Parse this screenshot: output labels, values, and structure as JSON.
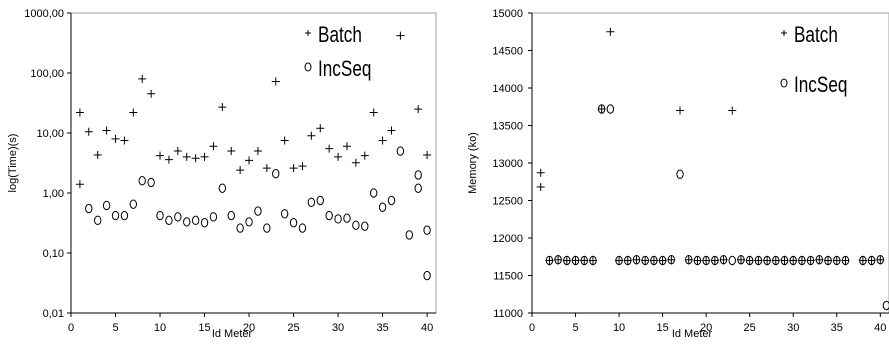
{
  "chart_data": [
    {
      "type": "scatter",
      "title": "",
      "xlabel": "Id Meter",
      "ylabel": "log(Time)(s)",
      "xlim": [
        0,
        41
      ],
      "ylim": [
        0.01,
        1000
      ],
      "yscale": "log",
      "x_ticks": [
        0,
        5,
        10,
        15,
        20,
        25,
        30,
        35,
        40
      ],
      "y_ticks": [
        0.01,
        0.1,
        1,
        10,
        100,
        1000
      ],
      "y_tick_labels": [
        "0,01",
        "0,10",
        "1,00",
        "10,00",
        "100,00",
        "1000,00"
      ],
      "grid": false,
      "legend_position": "top-right",
      "series": [
        {
          "name": "Batch",
          "marker": "plus",
          "points": [
            [
              1,
              22
            ],
            [
              1,
              1.4
            ],
            [
              2,
              10.5
            ],
            [
              3,
              4.3
            ],
            [
              4,
              11
            ],
            [
              5,
              8
            ],
            [
              6,
              7.5
            ],
            [
              7,
              22
            ],
            [
              8,
              80
            ],
            [
              9,
              45
            ],
            [
              10,
              4.2
            ],
            [
              11,
              3.6
            ],
            [
              12,
              5
            ],
            [
              13,
              4
            ],
            [
              14,
              3.8
            ],
            [
              15,
              4
            ],
            [
              16,
              6
            ],
            [
              17,
              27
            ],
            [
              18,
              5
            ],
            [
              19,
              2.4
            ],
            [
              20,
              3.5
            ],
            [
              21,
              5
            ],
            [
              22,
              2.6
            ],
            [
              23,
              72
            ],
            [
              24,
              7.5
            ],
            [
              25,
              2.6
            ],
            [
              26,
              2.8
            ],
            [
              27,
              9
            ],
            [
              28,
              12
            ],
            [
              29,
              5.5
            ],
            [
              30,
              4
            ],
            [
              31,
              6
            ],
            [
              32,
              3.2
            ],
            [
              33,
              4.2
            ],
            [
              34,
              22
            ],
            [
              35,
              7.5
            ],
            [
              36,
              11
            ],
            [
              37,
              420
            ],
            [
              39,
              25
            ],
            [
              40,
              4.3
            ]
          ]
        },
        {
          "name": "IncSeq",
          "marker": "circle",
          "points": [
            [
              2,
              0.55
            ],
            [
              3,
              0.35
            ],
            [
              4,
              0.62
            ],
            [
              5,
              0.42
            ],
            [
              6,
              0.42
            ],
            [
              7,
              0.65
            ],
            [
              8,
              1.6
            ],
            [
              9,
              1.5
            ],
            [
              10,
              0.42
            ],
            [
              11,
              0.35
            ],
            [
              12,
              0.4
            ],
            [
              13,
              0.33
            ],
            [
              14,
              0.35
            ],
            [
              15,
              0.32
            ],
            [
              16,
              0.4
            ],
            [
              17,
              1.2
            ],
            [
              18,
              0.42
            ],
            [
              19,
              0.26
            ],
            [
              20,
              0.33
            ],
            [
              21,
              0.5
            ],
            [
              22,
              0.26
            ],
            [
              23,
              2.1
            ],
            [
              24,
              0.45
            ],
            [
              25,
              0.32
            ],
            [
              26,
              0.26
            ],
            [
              27,
              0.7
            ],
            [
              28,
              0.75
            ],
            [
              29,
              0.42
            ],
            [
              30,
              0.37
            ],
            [
              31,
              0.38
            ],
            [
              32,
              0.29
            ],
            [
              33,
              0.28
            ],
            [
              34,
              1
            ],
            [
              35,
              0.58
            ],
            [
              36,
              0.75
            ],
            [
              37,
              5
            ],
            [
              38,
              0.2
            ],
            [
              39,
              1.2
            ],
            [
              39,
              2
            ],
            [
              40,
              0.24
            ],
            [
              40,
              0.042
            ]
          ]
        }
      ]
    },
    {
      "type": "scatter",
      "title": "",
      "xlabel": "Id Meter",
      "ylabel": "Memory (ko)",
      "xlim": [
        0,
        41
      ],
      "ylim": [
        11000,
        15000
      ],
      "yscale": "linear",
      "x_ticks": [
        0,
        5,
        10,
        15,
        20,
        25,
        30,
        35,
        40
      ],
      "y_ticks": [
        11000,
        11500,
        12000,
        12500,
        13000,
        13500,
        14000,
        14500,
        15000
      ],
      "grid": false,
      "legend_position": "top-right",
      "series": [
        {
          "name": "Batch",
          "marker": "plus",
          "points": [
            [
              1,
              12870
            ],
            [
              1,
              12680
            ],
            [
              2,
              11700
            ],
            [
              3,
              11710
            ],
            [
              4,
              11700
            ],
            [
              5,
              11700
            ],
            [
              6,
              11700
            ],
            [
              7,
              11700
            ],
            [
              8,
              13720
            ],
            [
              9,
              14750
            ],
            [
              10,
              11700
            ],
            [
              11,
              11700
            ],
            [
              12,
              11710
            ],
            [
              13,
              11700
            ],
            [
              14,
              11700
            ],
            [
              15,
              11700
            ],
            [
              16,
              11710
            ],
            [
              17,
              13700
            ],
            [
              18,
              11710
            ],
            [
              19,
              11700
            ],
            [
              20,
              11700
            ],
            [
              21,
              11700
            ],
            [
              22,
              11710
            ],
            [
              23,
              13700
            ],
            [
              24,
              11710
            ],
            [
              25,
              11700
            ],
            [
              26,
              11700
            ],
            [
              27,
              11700
            ],
            [
              28,
              11700
            ],
            [
              29,
              11700
            ],
            [
              30,
              11700
            ],
            [
              31,
              11700
            ],
            [
              32,
              11700
            ],
            [
              33,
              11710
            ],
            [
              34,
              11700
            ],
            [
              35,
              11700
            ],
            [
              36,
              11700
            ],
            [
              38,
              11700
            ],
            [
              39,
              11700
            ],
            [
              40,
              11710
            ]
          ]
        },
        {
          "name": "IncSeq",
          "marker": "circle",
          "points": [
            [
              2,
              11700
            ],
            [
              3,
              11710
            ],
            [
              4,
              11700
            ],
            [
              5,
              11700
            ],
            [
              6,
              11700
            ],
            [
              7,
              11700
            ],
            [
              8,
              13720
            ],
            [
              9,
              13720
            ],
            [
              10,
              11700
            ],
            [
              11,
              11700
            ],
            [
              12,
              11710
            ],
            [
              13,
              11700
            ],
            [
              14,
              11700
            ],
            [
              15,
              11700
            ],
            [
              16,
              11710
            ],
            [
              17,
              12850
            ],
            [
              18,
              11710
            ],
            [
              19,
              11700
            ],
            [
              20,
              11700
            ],
            [
              21,
              11700
            ],
            [
              22,
              11710
            ],
            [
              23,
              11700
            ],
            [
              24,
              11710
            ],
            [
              25,
              11700
            ],
            [
              26,
              11700
            ],
            [
              27,
              11700
            ],
            [
              28,
              11700
            ],
            [
              29,
              11700
            ],
            [
              30,
              11700
            ],
            [
              31,
              11700
            ],
            [
              32,
              11700
            ],
            [
              33,
              11710
            ],
            [
              34,
              11700
            ],
            [
              35,
              11700
            ],
            [
              36,
              11700
            ],
            [
              38,
              11700
            ],
            [
              39,
              11700
            ],
            [
              40,
              11710
            ],
            [
              40.7,
              11100
            ]
          ]
        }
      ]
    }
  ]
}
